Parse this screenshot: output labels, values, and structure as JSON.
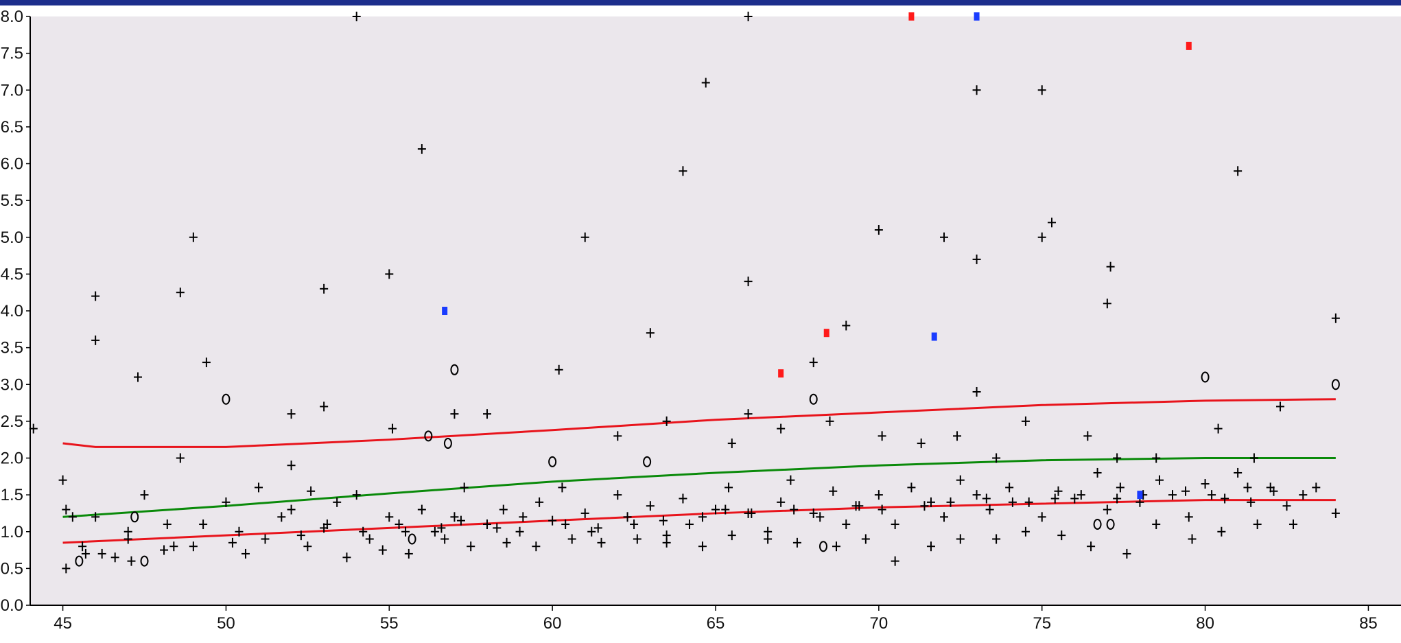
{
  "chart_data": {
    "type": "scatter",
    "title": "",
    "xlabel": "",
    "ylabel": "",
    "xlim": [
      44,
      86
    ],
    "ylim": [
      0,
      8
    ],
    "xticks": [
      "45",
      "50",
      "55",
      "60",
      "65",
      "70",
      "75",
      "80",
      "85"
    ],
    "yticks": [
      "0.0",
      "0.5",
      "1.0",
      "1.5",
      "2.0",
      "2.5",
      "3.0",
      "3.5",
      "4.0",
      "4.5",
      "5.0",
      "5.5",
      "6.0",
      "6.5",
      "7.0",
      "7.5",
      "8.0"
    ],
    "grid": false,
    "background": "#ebe7ec",
    "colors": {
      "points": "#000000",
      "upper_band": "#e8141c",
      "lower_band": "#e8141c",
      "trend": "#0a8a0a",
      "red_marks": "#ff1a1a",
      "blue_marks": "#1a3cff"
    },
    "series": [
      {
        "marker": "plus",
        "color": "#000000",
        "x": [
          44.1,
          45,
          45.1,
          46,
          46,
          47.3,
          48.6,
          49,
          49.4,
          53,
          54,
          55,
          56,
          60.2,
          61,
          63,
          64,
          64.7,
          66,
          66,
          68,
          69,
          70,
          72,
          73,
          73,
          73,
          75,
          75,
          75.3,
          77,
          77.1,
          81,
          84,
          45.1,
          45.6,
          46,
          46.6,
          47,
          47.5,
          48.1,
          48.6,
          49.3,
          50,
          50.2,
          51,
          51.7,
          52,
          52.6,
          53,
          53.4,
          54,
          54.4,
          55,
          55.5,
          56,
          56.6,
          57,
          57.3,
          58,
          58.5,
          59,
          59.6,
          60,
          60.3,
          61,
          61.4,
          62,
          62.5,
          63,
          63.5,
          64,
          64.6,
          65,
          65.4,
          66,
          66.6,
          67,
          67.3,
          68,
          68.6,
          69,
          69.4,
          70,
          70.5,
          71,
          71.6,
          72,
          72.5,
          73,
          73.4,
          74,
          74.6,
          75,
          75.5,
          76,
          76.7,
          77,
          77.4,
          78,
          78.6,
          79,
          79.5,
          80,
          80.6,
          81,
          81.4,
          82,
          82.5,
          83,
          84,
          45.3,
          46.2,
          47,
          48.2,
          49,
          50.4,
          51.2,
          52.3,
          53.1,
          54.2,
          55.3,
          56.4,
          57.2,
          58.3,
          59.1,
          60.4,
          61.2,
          62.3,
          63.4,
          64.2,
          65.3,
          66.1,
          67.4,
          68.2,
          69.3,
          70.1,
          71.4,
          72.2,
          73.3,
          74.1,
          75.4,
          76.2,
          77.3,
          78.1,
          79.4,
          80.2,
          81.3,
          82.1,
          83.4,
          45.7,
          47.1,
          48.4,
          50.6,
          52.5,
          53.7,
          54.8,
          55.6,
          56.7,
          57.5,
          58.6,
          59.5,
          60.6,
          61.5,
          62.6,
          63.5,
          64.6,
          65.5,
          66.6,
          67.5,
          68.7,
          69.6,
          70.5,
          71.6,
          72.5,
          73.6,
          74.5,
          75.6,
          76.5,
          77.6,
          78.5,
          79.6,
          80.5,
          81.6,
          82.7,
          52,
          52,
          53,
          55.1,
          57,
          58,
          62,
          63.5,
          65.5,
          66,
          67,
          68.5,
          70.1,
          71.3,
          72.4,
          73.6,
          74.5,
          76.4,
          77.3,
          78.5,
          80.4,
          81.5,
          82.3
        ],
        "y": [
          2.4,
          1.7,
          0.5,
          4.2,
          3.6,
          3.1,
          4.25,
          5.0,
          3.3,
          4.3,
          8.0,
          4.5,
          6.2,
          3.2,
          5.0,
          3.7,
          5.9,
          7.1,
          8.0,
          4.4,
          3.3,
          3.8,
          5.1,
          5.0,
          7.0,
          4.7,
          2.9,
          7.0,
          5.0,
          5.2,
          4.1,
          4.6,
          5.9,
          3.9,
          1.3,
          0.8,
          1.2,
          0.65,
          0.9,
          1.5,
          0.75,
          2.0,
          1.1,
          1.4,
          0.85,
          1.6,
          1.2,
          1.3,
          1.55,
          1.05,
          1.4,
          1.5,
          0.9,
          1.2,
          1.0,
          1.3,
          1.05,
          1.2,
          1.6,
          1.1,
          1.3,
          1.0,
          1.4,
          1.15,
          1.6,
          1.25,
          1.05,
          1.5,
          1.1,
          1.35,
          0.95,
          1.45,
          1.2,
          1.3,
          1.6,
          1.25,
          1.0,
          1.4,
          1.7,
          1.25,
          1.55,
          1.1,
          1.35,
          1.5,
          1.1,
          1.6,
          1.4,
          1.2,
          1.7,
          1.5,
          1.3,
          1.6,
          1.4,
          1.2,
          1.55,
          1.45,
          1.8,
          1.3,
          1.6,
          1.4,
          1.7,
          1.5,
          1.2,
          1.65,
          1.45,
          1.8,
          1.4,
          1.6,
          1.35,
          1.5,
          1.25,
          1.2,
          0.7,
          1.0,
          1.1,
          0.8,
          1.0,
          0.9,
          0.95,
          1.1,
          1.0,
          1.1,
          1.0,
          1.15,
          1.05,
          1.2,
          1.1,
          1.0,
          1.2,
          1.15,
          1.1,
          1.3,
          1.25,
          1.3,
          1.2,
          1.35,
          1.3,
          1.35,
          1.4,
          1.45,
          1.4,
          1.45,
          1.5,
          1.45,
          1.5,
          1.55,
          1.5,
          1.6,
          1.55,
          1.6,
          0.7,
          0.6,
          0.8,
          0.7,
          0.8,
          0.65,
          0.75,
          0.7,
          0.9,
          0.8,
          0.85,
          0.8,
          0.9,
          0.85,
          0.9,
          0.85,
          0.8,
          0.95,
          0.9,
          0.85,
          0.8,
          0.9,
          0.6,
          0.8,
          0.9,
          0.9,
          1.0,
          0.95,
          0.8,
          0.7,
          1.1,
          0.9,
          1.0,
          1.1,
          1.1,
          1.9,
          2.6,
          2.7,
          2.4,
          2.6,
          2.6,
          2.3,
          2.5,
          2.2,
          2.6,
          2.4,
          2.5,
          2.3,
          2.2,
          2.3,
          2.0,
          2.5,
          2.3,
          2.0,
          2.0,
          2.4,
          2.0,
          2.7
        ]
      },
      {
        "marker": "circle",
        "color": "#000000",
        "x": [
          45.5,
          47.2,
          47.5,
          50,
          55.7,
          56.2,
          56.8,
          57,
          60,
          62.9,
          68,
          68.3,
          76.7,
          77.1,
          80,
          84
        ],
        "y": [
          0.6,
          1.2,
          0.6,
          2.8,
          0.9,
          2.3,
          2.2,
          3.2,
          1.95,
          1.95,
          2.8,
          0.8,
          1.1,
          1.1,
          3.1,
          3.0
        ]
      },
      {
        "marker": "square",
        "name": "",
        "color": "#ff1a1a",
        "x": [
          67.0,
          68.4,
          71.0,
          79.5
        ],
        "y": [
          3.15,
          3.7,
          8.0,
          7.6
        ]
      },
      {
        "marker": "square",
        "name": "",
        "color": "#1a3cff",
        "x": [
          56.7,
          71.7,
          73.0,
          78.0
        ],
        "y": [
          4.0,
          3.65,
          8.0,
          1.5
        ]
      }
    ],
    "lines": [
      {
        "color": "#e8141c",
        "x": [
          45,
          46,
          50,
          55,
          60,
          65,
          70,
          75,
          80,
          84
        ],
        "y": [
          2.2,
          2.15,
          2.15,
          2.25,
          2.38,
          2.52,
          2.62,
          2.72,
          2.78,
          2.8
        ]
      },
      {
        "color": "#0a8a0a",
        "x": [
          45,
          50,
          55,
          60,
          65,
          70,
          75,
          80,
          84
        ],
        "y": [
          1.2,
          1.35,
          1.52,
          1.68,
          1.8,
          1.9,
          1.97,
          2.0,
          2.0
        ]
      },
      {
        "color": "#e8141c",
        "x": [
          45,
          50,
          55,
          60,
          65,
          70,
          75,
          80,
          84
        ],
        "y": [
          0.85,
          0.95,
          1.05,
          1.15,
          1.25,
          1.33,
          1.38,
          1.43,
          1.43
        ]
      }
    ]
  }
}
